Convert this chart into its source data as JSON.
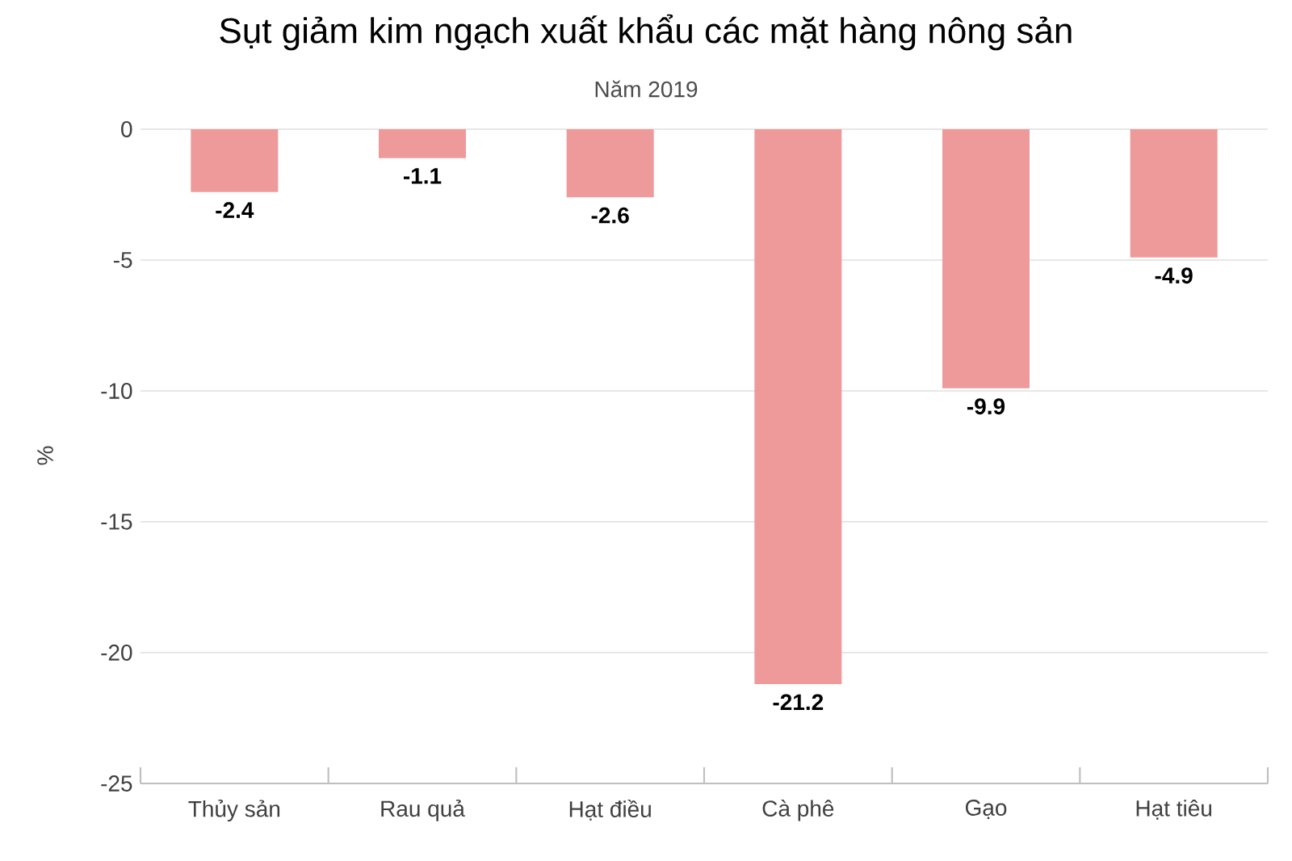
{
  "chart_data": {
    "type": "bar",
    "title": "Sụt giảm kim ngạch xuất khẩu các mặt hàng nông sản",
    "subtitle": "Năm 2019",
    "ylabel": "%",
    "categories": [
      "Thủy sản",
      "Rau quả",
      "Hạt điều",
      "Cà phê",
      "Gạo",
      "Hạt tiêu"
    ],
    "values": [
      -2.4,
      -1.1,
      -2.6,
      -21.2,
      -9.9,
      -4.9
    ],
    "color": "#ef9a9a",
    "ylim": [
      -25,
      0
    ],
    "yticks": [
      -25,
      -20,
      -15,
      -10,
      -5,
      0
    ],
    "grid": "y",
    "data_labels": true
  }
}
